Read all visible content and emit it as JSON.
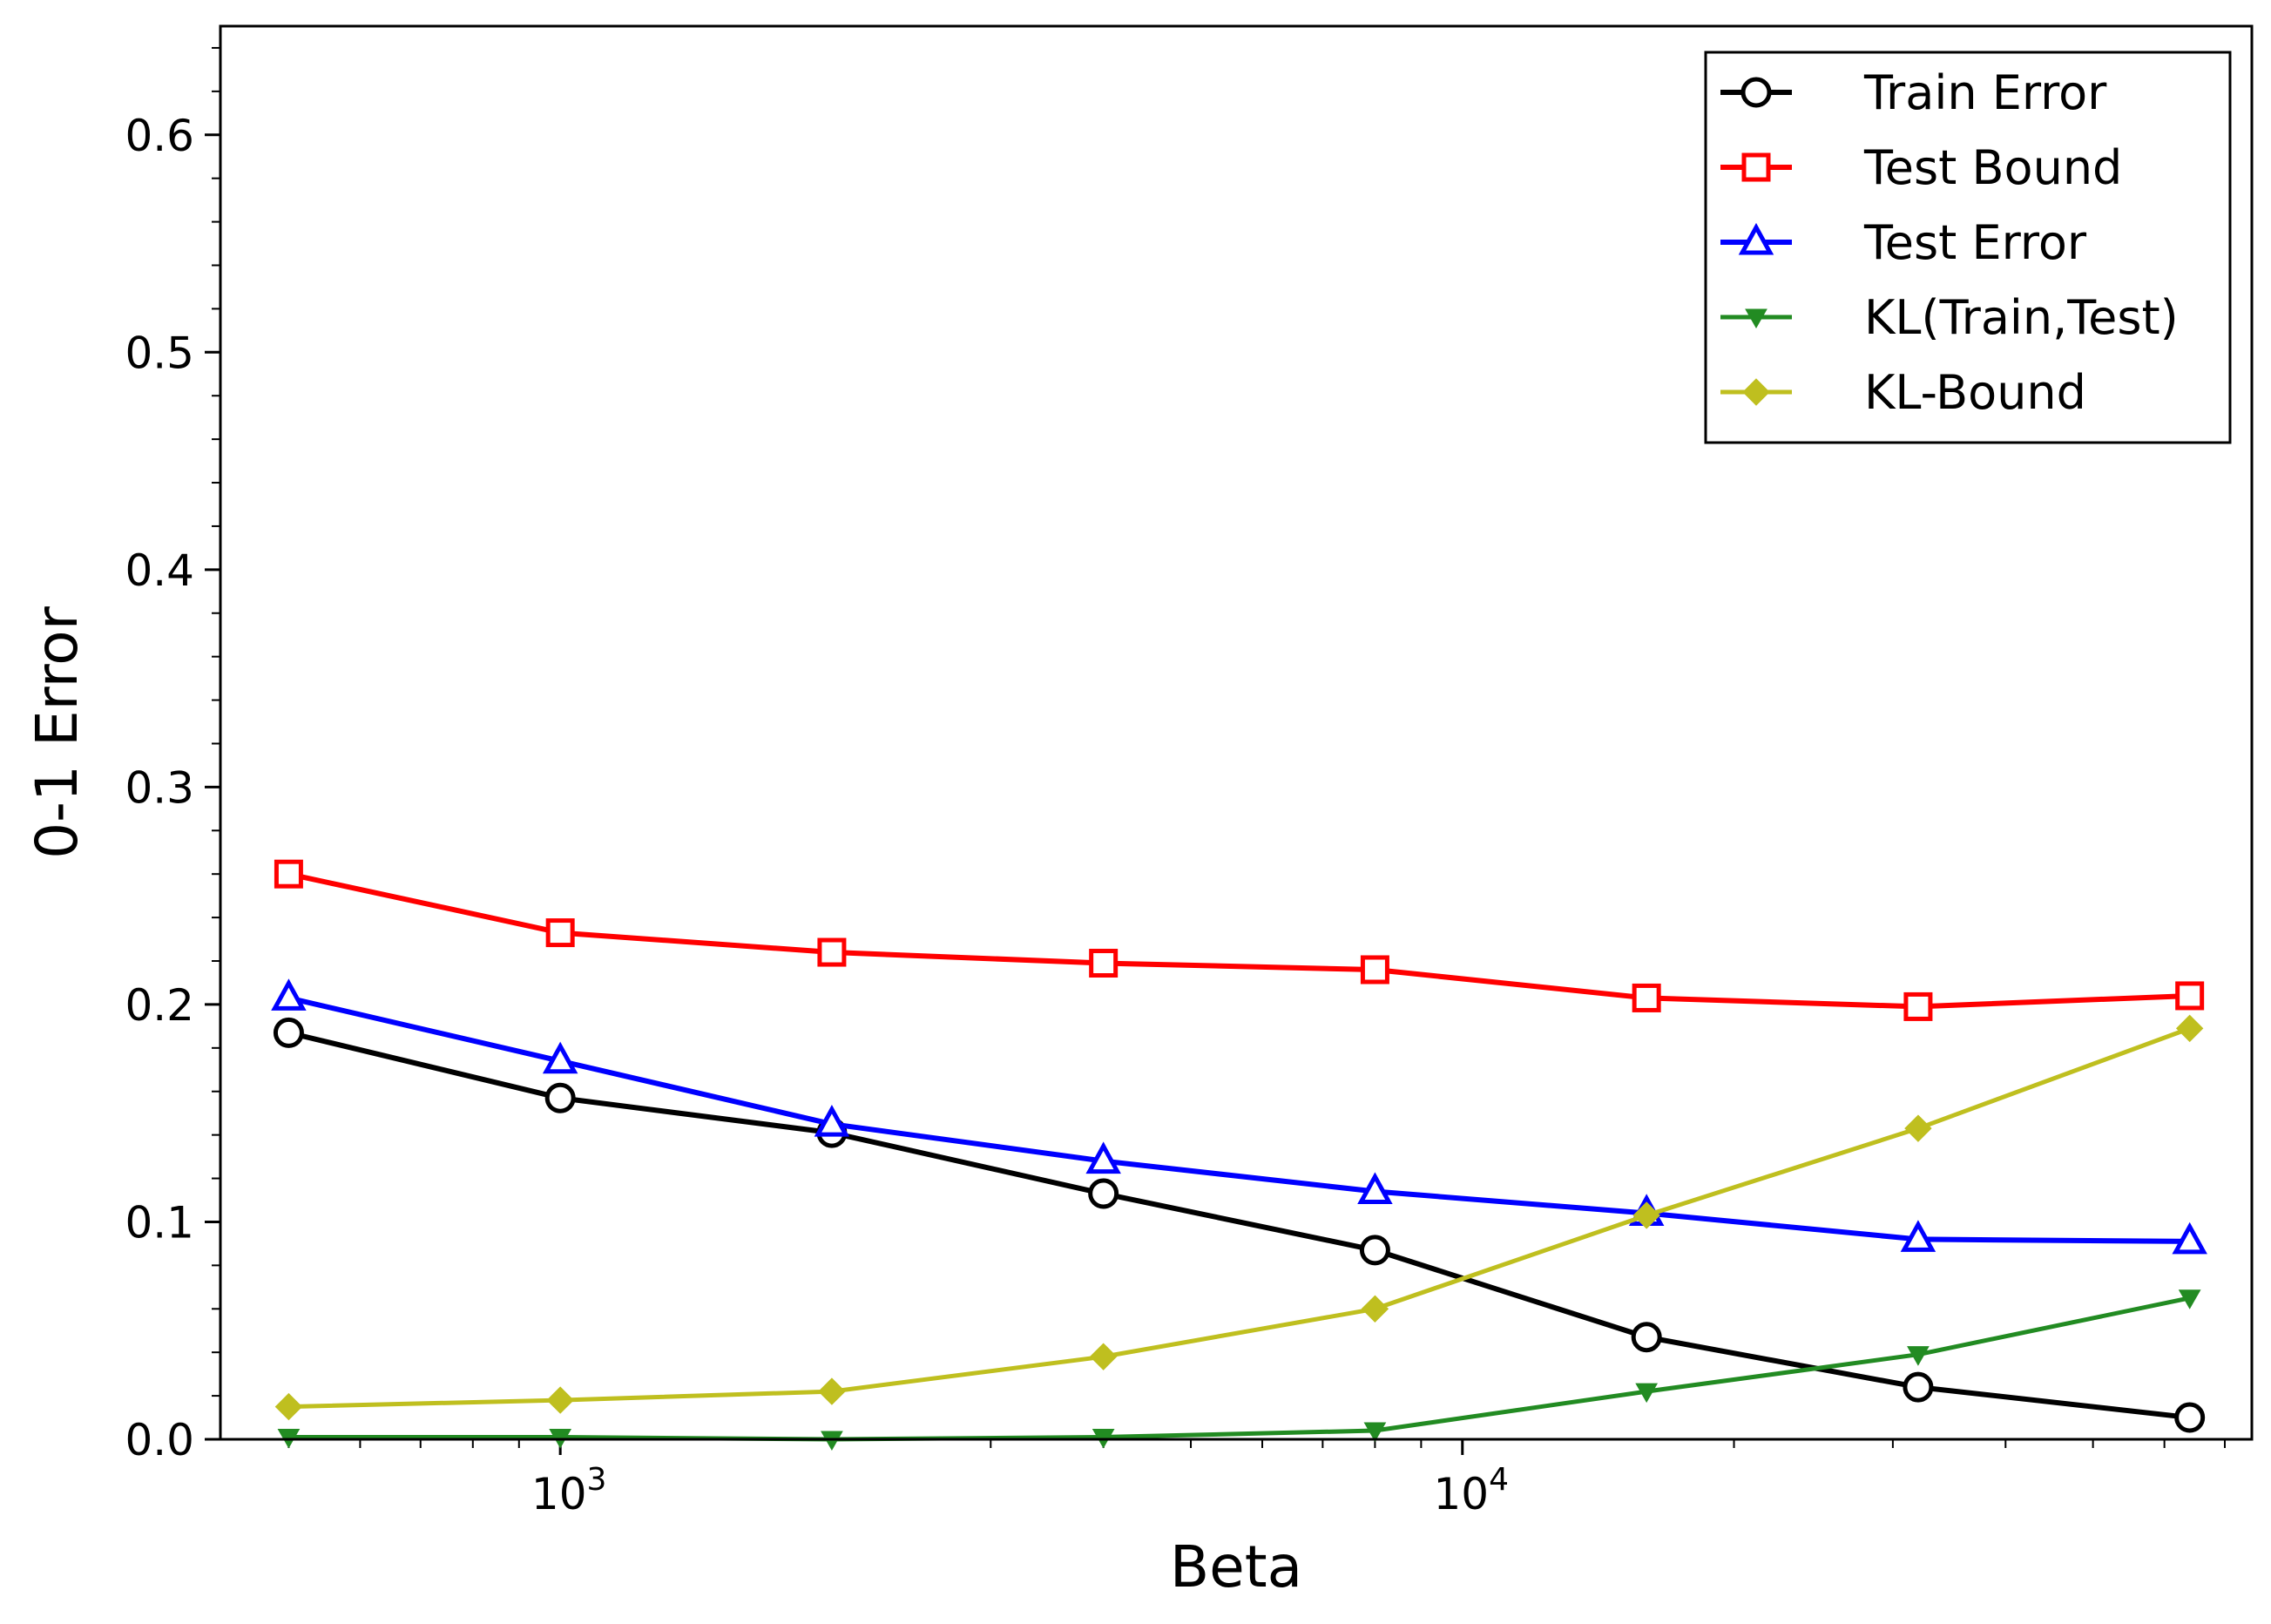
{
  "chart_data": {
    "type": "line",
    "title": "",
    "xlabel": "Beta",
    "ylabel": "0-1 Error",
    "xscale": "log",
    "xlim": [
      420,
      75000
    ],
    "ylim": [
      0,
      0.65
    ],
    "x": [
      500,
      1000,
      2000,
      4000,
      8000,
      16000,
      32000,
      64000
    ],
    "x_ticks": [
      {
        "value": 1000,
        "base": "10",
        "exp": "3"
      },
      {
        "value": 10000,
        "base": "10",
        "exp": "4"
      }
    ],
    "y_ticks": [
      {
        "value": 0.0,
        "label": "0.0"
      },
      {
        "value": 0.1,
        "label": "0.1"
      },
      {
        "value": 0.2,
        "label": "0.2"
      },
      {
        "value": 0.3,
        "label": "0.3"
      },
      {
        "value": 0.4,
        "label": "0.4"
      },
      {
        "value": 0.5,
        "label": "0.5"
      },
      {
        "value": 0.6,
        "label": "0.6"
      }
    ],
    "grid": false,
    "legend_position": "top-right",
    "series": [
      {
        "name": "Train Error",
        "color": "#000000",
        "marker": "circle-open",
        "values": [
          0.187,
          0.157,
          0.141,
          0.113,
          0.087,
          0.047,
          0.024,
          0.01
        ]
      },
      {
        "name": "Test Bound",
        "color": "#ff0000",
        "marker": "square-open",
        "values": [
          0.26,
          0.233,
          0.224,
          0.219,
          0.216,
          0.203,
          0.199,
          0.204
        ]
      },
      {
        "name": "Test Error",
        "color": "#0000ff",
        "marker": "triangle-up-open",
        "values": [
          0.203,
          0.174,
          0.145,
          0.128,
          0.114,
          0.104,
          0.092,
          0.091
        ]
      },
      {
        "name": "KL(Train,Test)",
        "color": "#228b22",
        "marker": "triangle-down-filled",
        "values": [
          0.001,
          0.001,
          0.0,
          0.001,
          0.004,
          0.022,
          0.039,
          0.065
        ]
      },
      {
        "name": "KL-Bound",
        "color": "#bfbf1f",
        "marker": "diamond-filled",
        "values": [
          0.015,
          0.018,
          0.022,
          0.038,
          0.06,
          0.103,
          0.143,
          0.189
        ]
      }
    ]
  }
}
